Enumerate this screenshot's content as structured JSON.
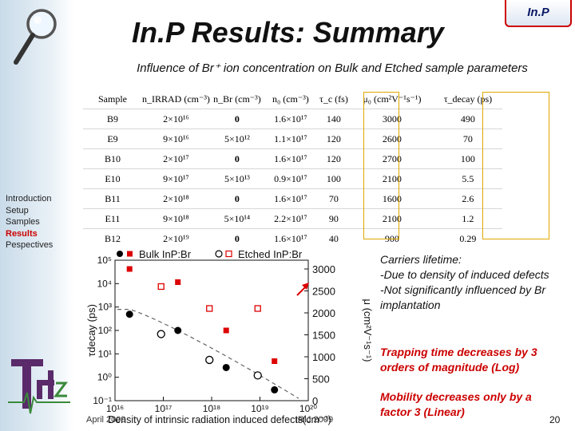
{
  "badge": "In.P",
  "title": "In.P Results: Summary",
  "subtitle": "Influence of Br⁺ ion concentration on Bulk and Etched sample parameters",
  "nav": [
    "Introduction",
    "Setup",
    "Samples",
    "Results",
    "Pespectives"
  ],
  "active_nav": "Results",
  "table": {
    "headers": [
      "Sample",
      "n_IRRAD (cm⁻³)",
      "n_Br (cm⁻³)",
      "n₀ (cm⁻³)",
      "τ_c (fs)",
      "μ₀ (cm²V⁻¹s⁻¹)",
      "τ_decay (ps)"
    ],
    "rows": [
      [
        "B9",
        "2×10¹⁶",
        "0",
        "1.6×10¹⁷",
        "140",
        "3000",
        "490"
      ],
      [
        "E9",
        "9×10¹⁶",
        "5×10¹²",
        "1.1×10¹⁷",
        "120",
        "2600",
        "70"
      ],
      [
        "B10",
        "2×10¹⁷",
        "0",
        "1.6×10¹⁷",
        "120",
        "2700",
        "100"
      ],
      [
        "E10",
        "9×10¹⁷",
        "5×10¹³",
        "0.9×10¹⁷",
        "100",
        "2100",
        "5.5"
      ],
      [
        "B11",
        "2×10¹⁸",
        "0",
        "1.6×10¹⁷",
        "70",
        "1600",
        "2.6"
      ],
      [
        "E11",
        "9×10¹⁸",
        "5×10¹⁴",
        "2.2×10¹⁷",
        "90",
        "2100",
        "1.2"
      ],
      [
        "B12",
        "2×10¹⁹",
        "0",
        "1.6×10¹⁷",
        "40",
        "900",
        "0.29"
      ]
    ]
  },
  "chart_data": {
    "type": "scatter",
    "xlabel": "Density of intrinsic radiation induced defects(cm⁻³)",
    "ylabel_left": "τdecay (ps)",
    "ylabel_right": "μ (cm²V⁻¹s⁻¹)",
    "x_scale": "log",
    "x_ticks": [
      "10¹⁶",
      "10¹⁷",
      "10¹⁸",
      "10¹⁹",
      "10²⁰"
    ],
    "y_left_scale": "log",
    "y_left_ticks": [
      "10⁵",
      "10⁴",
      "10³",
      "10²",
      "10¹",
      "10⁰",
      "10⁻¹"
    ],
    "y_right_ticks": [
      "3000",
      "2500",
      "2000",
      "1500",
      "1000",
      "500",
      "0"
    ],
    "ylim_right": [
      0,
      3200
    ],
    "legend": [
      "Bulk InP:Br",
      "Etched InP:Br"
    ],
    "series": [
      {
        "name": "Bulk InP:Br",
        "axis": "left",
        "marker": "filled-circle",
        "color": "#000000",
        "points": [
          [
            2e+16,
            490
          ],
          [
            2e+17,
            100
          ],
          [
            2e+18,
            2.6
          ],
          [
            2e+19,
            0.29
          ]
        ]
      },
      {
        "name": "Etched InP:Br",
        "axis": "left",
        "marker": "open-circle",
        "color": "#000000",
        "points": [
          [
            9e+16,
            70
          ],
          [
            9e+17,
            5.5
          ],
          [
            9e+18,
            1.2
          ]
        ]
      },
      {
        "name": "Bulk InP:Br",
        "axis": "right",
        "marker": "filled-square",
        "color": "#dd0000",
        "points": [
          [
            2e+16,
            3000
          ],
          [
            2e+17,
            2700
          ],
          [
            2e+18,
            1600
          ],
          [
            2e+19,
            900
          ]
        ]
      },
      {
        "name": "Etched InP:Br",
        "axis": "right",
        "marker": "open-square",
        "color": "#dd0000",
        "points": [
          [
            9e+16,
            2600
          ],
          [
            9e+17,
            2100
          ],
          [
            9e+18,
            2100
          ]
        ]
      }
    ],
    "fit_curve": "dashed"
  },
  "notes": {
    "lifetime_title": "Carriers lifetime:",
    "lifetime_1": "-Due to density of induced defects",
    "lifetime_2": "-Not significantly influenced by Br implantation",
    "trapping": "Trapping time decreases by 3 orders of magnitude (Log)",
    "mobility": "Mobility decreases only by a factor 3 (Linear)"
  },
  "footer": {
    "date": "April 2009",
    "conference": "IRIJ 2009",
    "page": "20"
  },
  "colors": {
    "accent": "#cc0000",
    "highlight": "#e0a800"
  }
}
